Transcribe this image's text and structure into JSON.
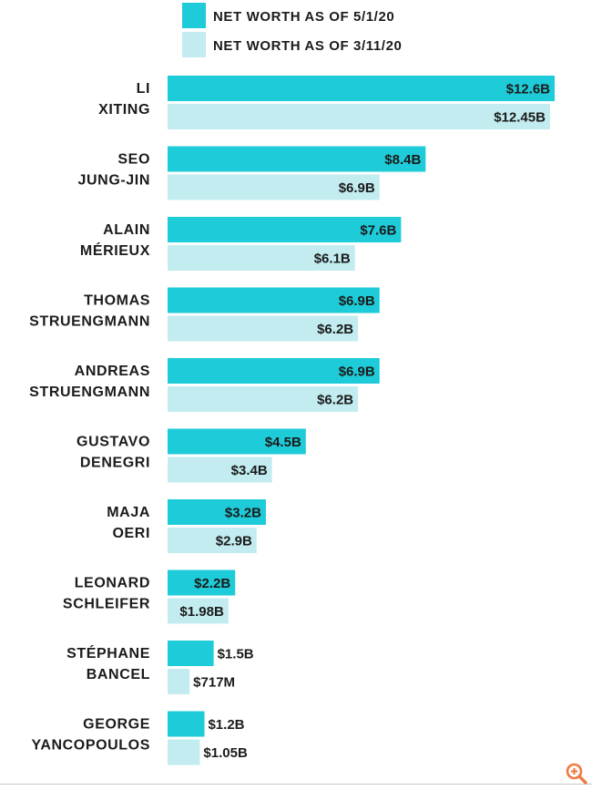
{
  "colors": {
    "current": "#1ecbd8",
    "previous": "#c3ecf0",
    "text": "#1b1b1b",
    "accent": "#f07a43"
  },
  "legend": {
    "current_label": "NET WORTH AS OF 5/1/20",
    "previous_label": "NET WORTH AS OF 3/11/20"
  },
  "chart_data": {
    "type": "bar",
    "orientation": "horizontal",
    "title": "",
    "xlabel": "",
    "ylabel": "",
    "xlim": [
      0,
      12.6
    ],
    "grid": false,
    "legend_position": "top",
    "categories": [
      [
        "LI",
        "XITING"
      ],
      [
        "SEO",
        "JUNG-JIN"
      ],
      [
        "ALAIN",
        "MÉRIEUX"
      ],
      [
        "THOMAS",
        "STRUENGMANN"
      ],
      [
        "ANDREAS",
        "STRUENGMANN"
      ],
      [
        "GUSTAVO",
        "DENEGRI"
      ],
      [
        "MAJA",
        "OERI"
      ],
      [
        "LEONARD",
        "SCHLEIFER"
      ],
      [
        "STÉPHANE",
        "BANCEL"
      ],
      [
        "GEORGE",
        "YANCOPOULOS"
      ]
    ],
    "series": [
      {
        "name": "NET WORTH AS OF 5/1/20",
        "values": [
          12.6,
          8.4,
          7.6,
          6.9,
          6.9,
          4.5,
          3.2,
          2.2,
          1.5,
          1.2
        ],
        "labels": [
          "$12.6B",
          "$8.4B",
          "$7.6B",
          "$6.9B",
          "$6.9B",
          "$4.5B",
          "$3.2B",
          "$2.2B",
          "$1.5B",
          "$1.2B"
        ]
      },
      {
        "name": "NET WORTH AS OF 3/11/20",
        "values": [
          12.45,
          6.9,
          6.1,
          6.2,
          6.2,
          3.4,
          2.9,
          1.98,
          0.717,
          1.05
        ],
        "labels": [
          "$12.45B",
          "$6.9B",
          "$6.1B",
          "$6.2B",
          "$6.2B",
          "$3.4B",
          "$2.9B",
          "$1.98B",
          "$717M",
          "$1.05B"
        ]
      }
    ]
  }
}
